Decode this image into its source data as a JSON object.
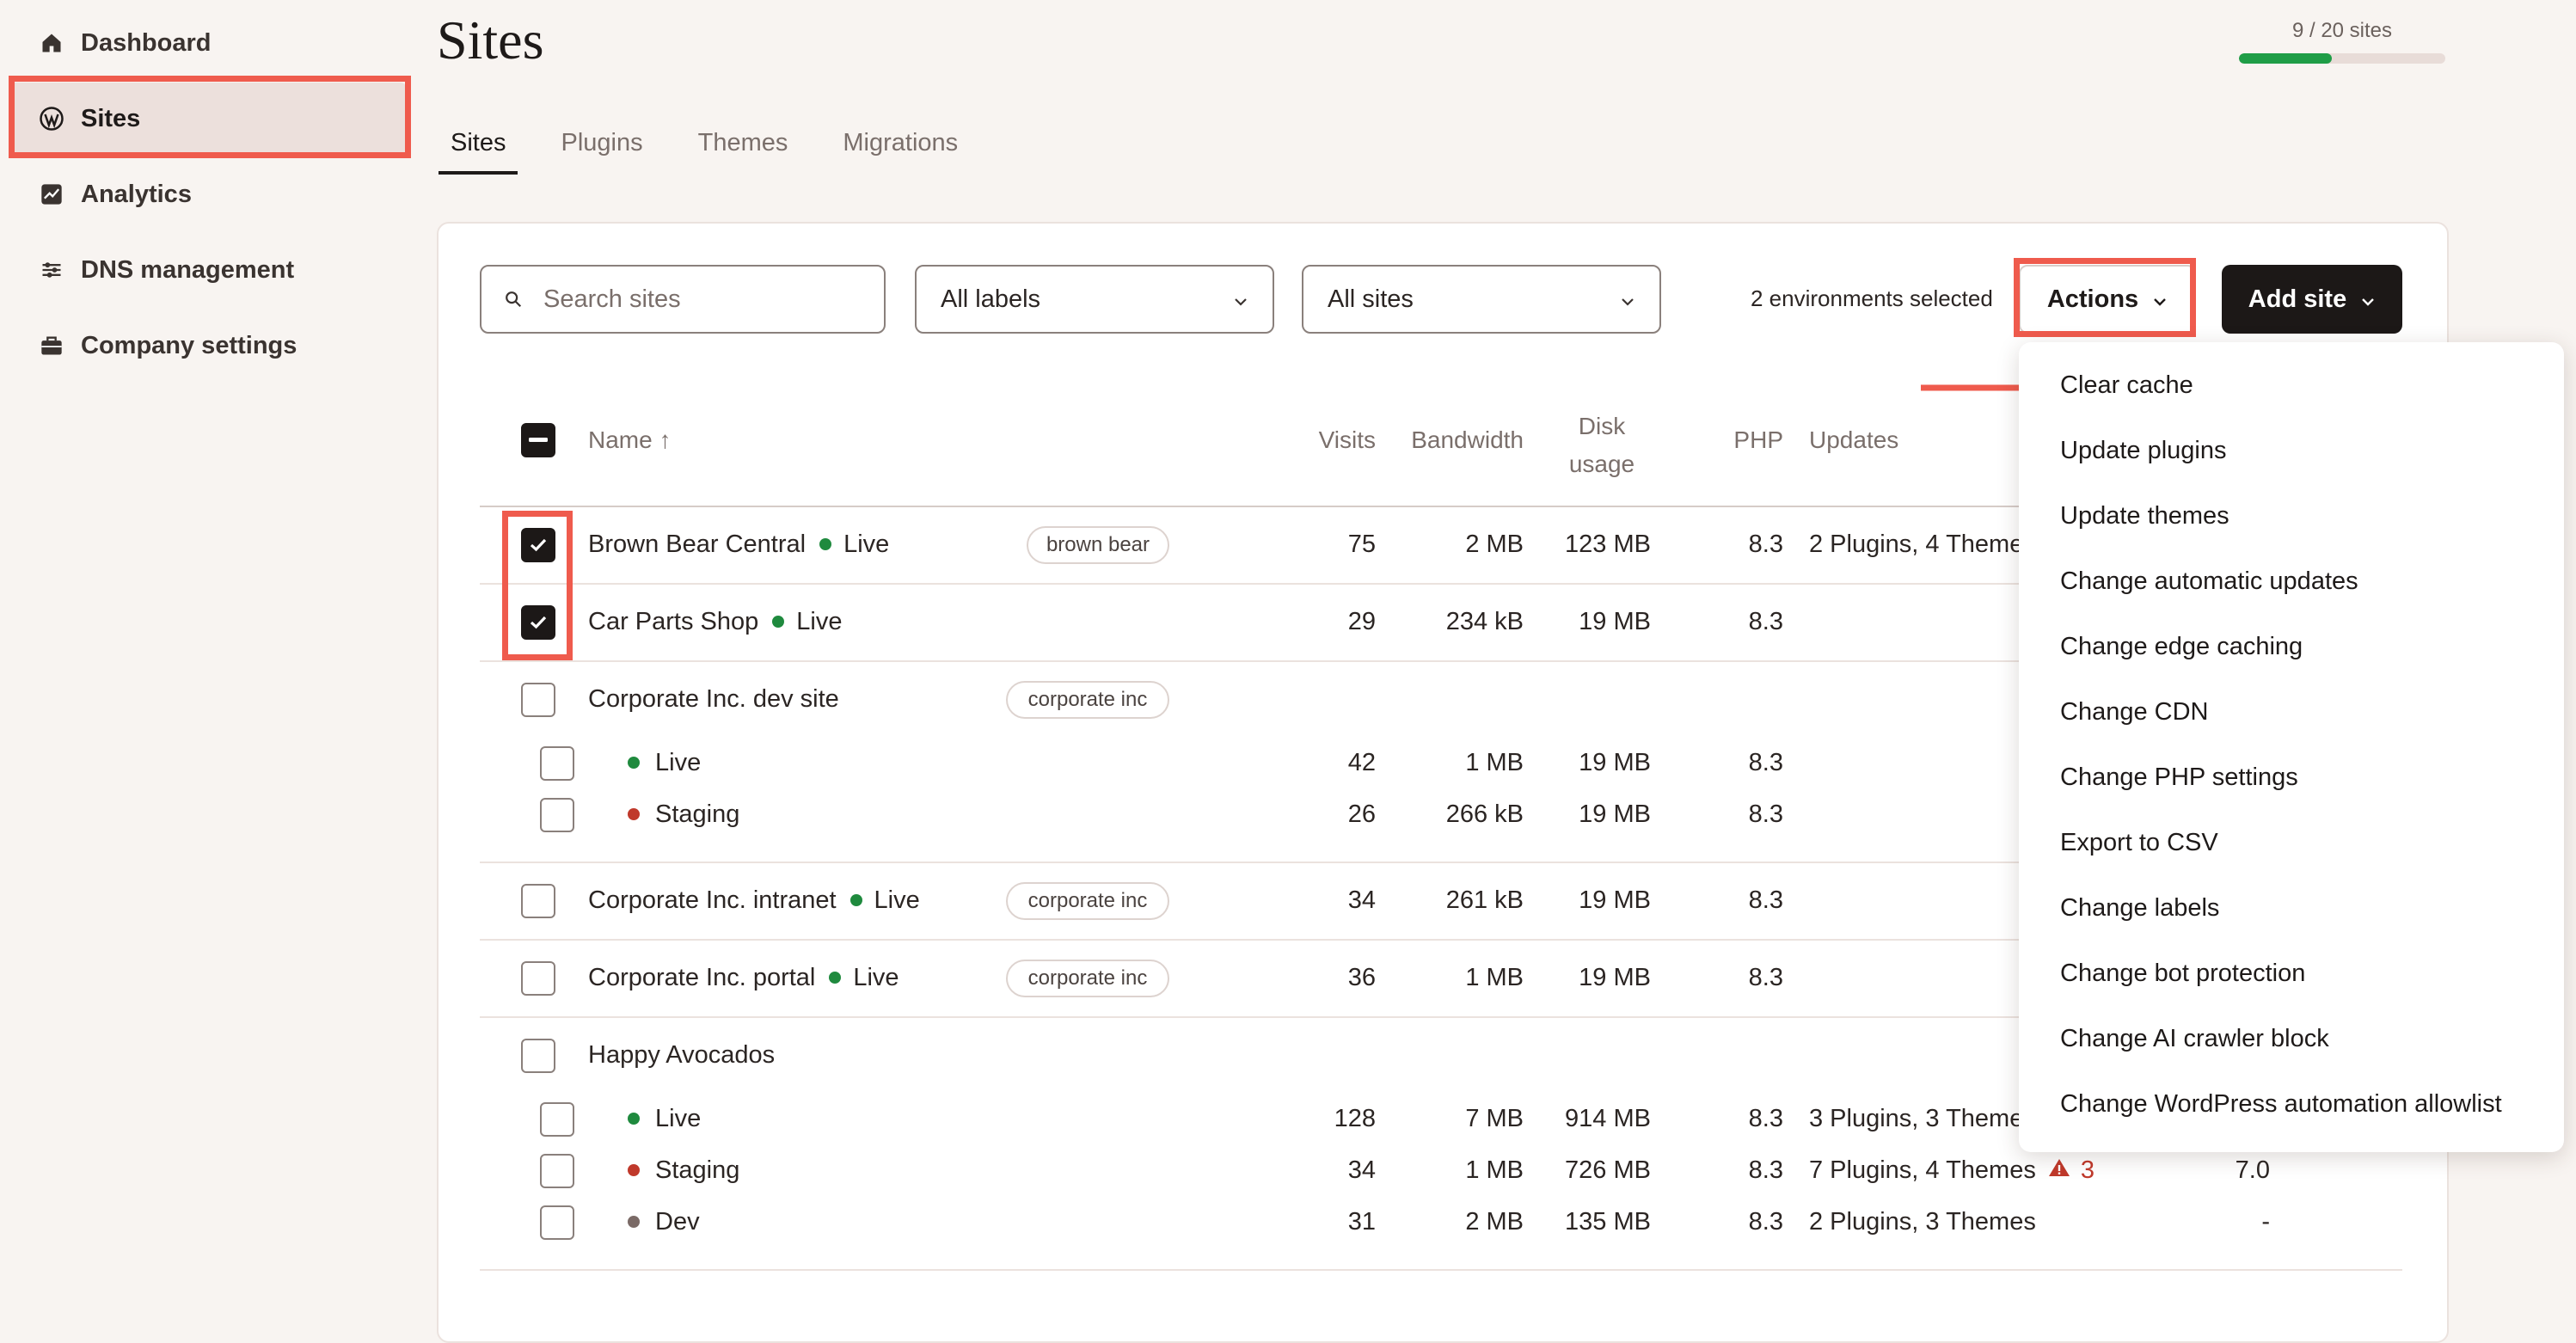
{
  "sidebar": {
    "items": [
      {
        "label": "Dashboard",
        "icon": "home-icon"
      },
      {
        "label": "Sites",
        "icon": "wordpress-icon"
      },
      {
        "label": "Analytics",
        "icon": "analytics-icon"
      },
      {
        "label": "DNS management",
        "icon": "dns-icon"
      },
      {
        "label": "Company settings",
        "icon": "briefcase-icon"
      }
    ]
  },
  "header": {
    "title": "Sites",
    "usage": {
      "text": "9 / 20 sites",
      "used": 9,
      "total": 20
    }
  },
  "tabs": [
    "Sites",
    "Plugins",
    "Themes",
    "Migrations"
  ],
  "toolbar": {
    "search_placeholder": "Search sites",
    "labels_filter": "All labels",
    "sites_filter": "All sites",
    "selection_text": "2 environments selected",
    "actions_label": "Actions",
    "add_site_label": "Add site"
  },
  "table": {
    "columns": {
      "name": "Name ↑",
      "visits": "Visits",
      "bandwidth": "Bandwidth",
      "disk_line1": "Disk",
      "disk_line2": "usage",
      "php": "PHP",
      "updates": "Updates"
    },
    "rows": [
      {
        "name": "Brown Bear Central",
        "status": "Live",
        "tag": "brown bear",
        "visits": "75",
        "bandwidth": "2 MB",
        "disk": "123 MB",
        "php": "8.3",
        "updates": "2 Plugins, 4 Theme"
      },
      {
        "name": "Car Parts Shop",
        "status": "Live",
        "visits": "29",
        "bandwidth": "234 kB",
        "disk": "19 MB",
        "php": "8.3"
      },
      {
        "name": "Corporate Inc. dev site",
        "tag": "corporate inc"
      },
      {
        "status": "Live",
        "visits": "42",
        "bandwidth": "1 MB",
        "disk": "19 MB",
        "php": "8.3"
      },
      {
        "status": "Staging",
        "visits": "26",
        "bandwidth": "266 kB",
        "disk": "19 MB",
        "php": "8.3"
      },
      {
        "name": "Corporate Inc. intranet",
        "status": "Live",
        "tag": "corporate inc",
        "visits": "34",
        "bandwidth": "261 kB",
        "disk": "19 MB",
        "php": "8.3"
      },
      {
        "name": "Corporate Inc. portal",
        "status": "Live",
        "tag": "corporate inc",
        "visits": "36",
        "bandwidth": "1 MB",
        "disk": "19 MB",
        "php": "8.3"
      },
      {
        "name": "Happy Avocados"
      },
      {
        "status": "Live",
        "visits": "128",
        "bandwidth": "7 MB",
        "disk": "914 MB",
        "php": "8.3",
        "updates": "3 Plugins, 3 Theme"
      },
      {
        "status": "Staging",
        "visits": "34",
        "bandwidth": "1 MB",
        "disk": "726 MB",
        "php": "8.3",
        "updates": "7 Plugins, 4 Themes",
        "warn_count": "3",
        "wp": "7.0"
      },
      {
        "status": "Dev",
        "visits": "31",
        "bandwidth": "2 MB",
        "disk": "135 MB",
        "php": "8.3",
        "updates": "2 Plugins, 3 Themes",
        "wp": "-"
      }
    ]
  },
  "actions_menu": [
    "Clear cache",
    "Update plugins",
    "Update themes",
    "Change automatic updates",
    "Change edge caching",
    "Change CDN",
    "Change PHP settings",
    "Export to CSV",
    "Change labels",
    "Change bot protection",
    "Change AI crawler block",
    "Change WordPress automation allowlist"
  ],
  "colors": {
    "accent": "#ef5b4d",
    "live": "#1f8a3e",
    "staging": "#c0392b",
    "neutral": "#7a6a66",
    "dark": "#1c1817"
  }
}
